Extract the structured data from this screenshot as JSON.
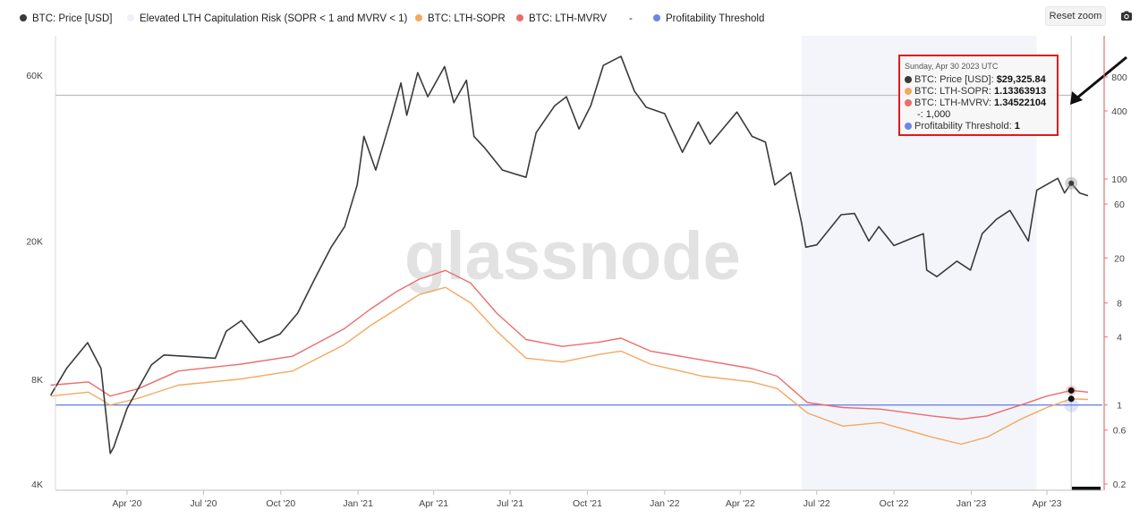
{
  "legend": [
    {
      "label": "BTC: Price [USD]",
      "color": "#3a3a3a"
    },
    {
      "label": "Elevated LTH Capitulation Risk (SOPR < 1 and MVRV < 1)",
      "color": "#f0f0f6"
    },
    {
      "label": "BTC: LTH-SOPR",
      "color": "#f4a85e"
    },
    {
      "label": "BTC: LTH-MVRV",
      "color": "#ec6c6c"
    },
    {
      "label": "-",
      "color": ""
    },
    {
      "label": "Profitability Threshold",
      "color": "#6b86e8"
    }
  ],
  "controls": {
    "reset_zoom": "Reset zoom",
    "camera_icon": "camera-icon"
  },
  "watermark": "glassnode",
  "tooltip": {
    "date": "Sunday, Apr 30 2023 UTC",
    "rows": [
      {
        "label": "BTC: Price [USD]:",
        "value": "$29,325.84",
        "color": "#3a3a3a"
      },
      {
        "label": "BTC: LTH-SOPR:",
        "value": "1.13363913",
        "color": "#f4a85e"
      },
      {
        "label": "BTC: LTH-MVRV:",
        "value": "1.34522104",
        "color": "#ec6c6c"
      }
    ],
    "extra": "-: 1,000",
    "threshold": {
      "label": "Profitability Threshold:",
      "value": "1",
      "color": "#6b86e8"
    }
  },
  "chart_data": {
    "type": "line",
    "x_ticks": [
      "Apr '20",
      "Jul '20",
      "Oct '20",
      "Jan '21",
      "Apr '21",
      "Jul '21",
      "Oct '21",
      "Jan '22",
      "Apr '22",
      "Jul '22",
      "Oct '22",
      "Jan '23",
      "Apr '23"
    ],
    "x_tick_dates": [
      "2020-04-01",
      "2020-07-01",
      "2020-10-01",
      "2021-01-01",
      "2021-04-01",
      "2021-07-01",
      "2021-10-01",
      "2022-01-01",
      "2022-04-01",
      "2022-07-01",
      "2022-10-01",
      "2023-01-01",
      "2023-04-01"
    ],
    "left_axis": {
      "scale": "log",
      "ticks": [
        "4K",
        "8K",
        "20K",
        "60K"
      ],
      "tick_values": [
        4000,
        8000,
        20000,
        60000
      ]
    },
    "right_axis": {
      "scale": "log",
      "ticks": [
        "0.2",
        "0.6",
        "1",
        "4",
        "8",
        "20",
        "60",
        "100",
        "400",
        "800"
      ],
      "tick_values": [
        0.2,
        0.6,
        1,
        4,
        8,
        20,
        60,
        100,
        400,
        800
      ]
    },
    "threshold_value": 1,
    "price_reference_line": 52500,
    "capitulation_range": [
      "2022-06-13",
      "2023-03-20"
    ],
    "crosshair_date": "2023-04-30",
    "series": [
      {
        "name": "BTC: Price [USD]",
        "color": "#3a3a3a",
        "axis": "left",
        "dates": [
          "2020-01-01",
          "2020-01-20",
          "2020-02-14",
          "2020-03-01",
          "2020-03-12",
          "2020-03-16",
          "2020-04-01",
          "2020-04-30",
          "2020-05-15",
          "2020-06-15",
          "2020-07-15",
          "2020-07-28",
          "2020-08-15",
          "2020-09-05",
          "2020-09-30",
          "2020-10-21",
          "2020-11-10",
          "2020-11-30",
          "2020-12-16",
          "2020-12-31",
          "2021-01-08",
          "2021-01-22",
          "2021-02-08",
          "2021-02-21",
          "2021-02-28",
          "2021-03-13",
          "2021-03-25",
          "2021-04-14",
          "2021-04-25",
          "2021-05-10",
          "2021-05-19",
          "2021-06-01",
          "2021-06-22",
          "2021-07-20",
          "2021-08-01",
          "2021-08-23",
          "2021-09-06",
          "2021-09-21",
          "2021-10-05",
          "2021-10-20",
          "2021-11-10",
          "2021-11-26",
          "2021-12-10",
          "2022-01-01",
          "2022-01-22",
          "2022-02-10",
          "2022-02-24",
          "2022-03-28",
          "2022-04-15",
          "2022-05-01",
          "2022-05-12",
          "2022-05-31",
          "2022-06-13",
          "2022-06-18",
          "2022-07-01",
          "2022-07-30",
          "2022-08-15",
          "2022-09-01",
          "2022-09-13",
          "2022-10-01",
          "2022-10-25",
          "2022-11-05",
          "2022-11-09",
          "2022-11-21",
          "2022-12-15",
          "2022-12-31",
          "2023-01-14",
          "2023-01-31",
          "2023-02-16",
          "2023-03-10",
          "2023-03-20",
          "2023-04-14",
          "2023-04-22",
          "2023-04-30",
          "2023-05-10",
          "2023-05-20"
        ],
        "values": [
          7200,
          8600,
          10200,
          8600,
          4900,
          5100,
          6600,
          8800,
          9400,
          9300,
          9200,
          11000,
          11800,
          10200,
          10800,
          12400,
          15500,
          19200,
          22000,
          29000,
          40000,
          32000,
          44000,
          57000,
          46000,
          61000,
          52000,
          63500,
          50000,
          58000,
          40000,
          37000,
          32000,
          30500,
          41000,
          49000,
          52000,
          42000,
          49000,
          64000,
          68000,
          54000,
          48500,
          46500,
          36000,
          44000,
          38000,
          47000,
          40000,
          38500,
          29000,
          31500,
          22500,
          19200,
          19500,
          23800,
          24000,
          20000,
          22000,
          19400,
          20500,
          21000,
          16500,
          15800,
          17500,
          16500,
          21000,
          23100,
          24500,
          20000,
          28000,
          30300,
          27500,
          29325,
          27500,
          27000
        ]
      },
      {
        "name": "BTC: LTH-SOPR",
        "color": "#f4a85e",
        "axis": "right",
        "dates": [
          "2020-01-01",
          "2020-02-15",
          "2020-03-12",
          "2020-04-15",
          "2020-06-01",
          "2020-08-15",
          "2020-10-15",
          "2020-12-15",
          "2021-01-15",
          "2021-02-15",
          "2021-03-15",
          "2021-04-15",
          "2021-05-15",
          "2021-06-15",
          "2021-07-20",
          "2021-09-01",
          "2021-10-15",
          "2021-11-10",
          "2021-12-15",
          "2022-02-15",
          "2022-04-15",
          "2022-05-15",
          "2022-06-20",
          "2022-08-01",
          "2022-09-15",
          "2022-11-15",
          "2022-12-20",
          "2023-01-20",
          "2023-03-01",
          "2023-04-01",
          "2023-04-30",
          "2023-05-20"
        ],
        "values": [
          1.2,
          1.3,
          1.0,
          1.15,
          1.5,
          1.7,
          2.0,
          3.4,
          5.0,
          7.0,
          9.5,
          11.0,
          8.0,
          4.5,
          2.6,
          2.4,
          2.8,
          3.0,
          2.3,
          1.8,
          1.6,
          1.4,
          0.85,
          0.65,
          0.7,
          0.52,
          0.45,
          0.52,
          0.75,
          0.95,
          1.134,
          1.12
        ]
      },
      {
        "name": "BTC: LTH-MVRV",
        "color": "#ec6c6c",
        "axis": "right",
        "dates": [
          "2020-01-01",
          "2020-02-15",
          "2020-03-12",
          "2020-04-15",
          "2020-06-01",
          "2020-08-15",
          "2020-10-15",
          "2020-12-15",
          "2021-01-15",
          "2021-02-15",
          "2021-03-15",
          "2021-04-15",
          "2021-05-15",
          "2021-06-15",
          "2021-07-20",
          "2021-09-01",
          "2021-10-15",
          "2021-11-10",
          "2021-12-15",
          "2022-02-15",
          "2022-04-15",
          "2022-05-15",
          "2022-06-20",
          "2022-08-01",
          "2022-09-15",
          "2022-11-15",
          "2022-12-20",
          "2023-01-20",
          "2023-03-01",
          "2023-04-01",
          "2023-04-30",
          "2023-05-20"
        ],
        "values": [
          1.5,
          1.6,
          1.2,
          1.4,
          2.0,
          2.3,
          2.7,
          4.7,
          7.0,
          10.0,
          13.0,
          15.5,
          12.0,
          6.5,
          3.8,
          3.3,
          3.6,
          3.9,
          3.0,
          2.5,
          2.1,
          1.8,
          1.05,
          0.95,
          0.92,
          0.8,
          0.75,
          0.8,
          1.0,
          1.2,
          1.345,
          1.3
        ]
      },
      {
        "name": "Profitability Threshold",
        "color": "#6b86e8",
        "axis": "right",
        "dates": [
          "2020-01-01",
          "2023-05-20"
        ],
        "values": [
          1,
          1
        ]
      }
    ]
  }
}
